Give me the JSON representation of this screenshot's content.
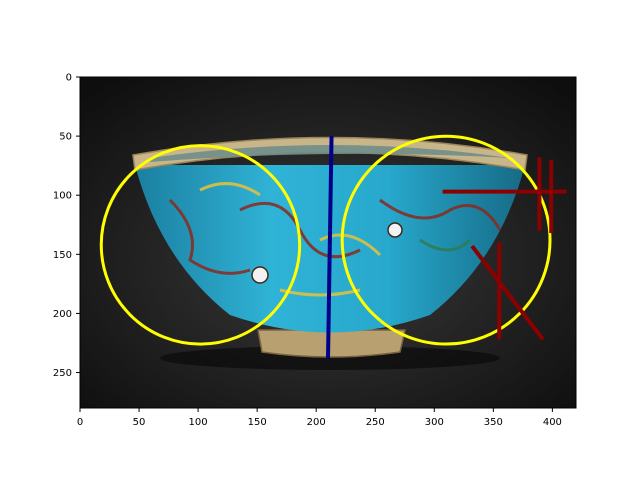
{
  "figure": {
    "x_ticks": [
      "0",
      "50",
      "100",
      "150",
      "200",
      "250",
      "300",
      "350",
      "400"
    ],
    "y_ticks": [
      "0",
      "50",
      "100",
      "150",
      "200",
      "250"
    ],
    "xlim": [
      0,
      420
    ],
    "ylim": [
      280,
      0
    ],
    "y_inverted": true,
    "image_subject": "cloisonne-enamel-bowl",
    "colors": {
      "circle": "#ffff00",
      "vertical_line": "#00008b",
      "cross_marks": "#8b0000",
      "background_dark": "#1e1e1e",
      "bowl_turquoise": "#1fa4c7"
    }
  },
  "annotations": {
    "circles": [
      {
        "cx": 102,
        "cy": 142,
        "r": 84
      },
      {
        "cx": 310,
        "cy": 138,
        "r": 88
      }
    ],
    "vertical_line": {
      "x1": 213,
      "y1": 50,
      "x2": 210,
      "y2": 238
    },
    "cross_marks": [
      {
        "x1": 307,
        "y1": 97,
        "x2": 412,
        "y2": 97
      },
      {
        "x1": 389,
        "y1": 68,
        "x2": 389,
        "y2": 130
      },
      {
        "x1": 399,
        "y1": 70,
        "x2": 399,
        "y2": 132
      },
      {
        "x1": 355,
        "y1": 140,
        "x2": 355,
        "y2": 222
      },
      {
        "x1": 332,
        "y1": 143,
        "x2": 392,
        "y2": 222
      }
    ]
  }
}
